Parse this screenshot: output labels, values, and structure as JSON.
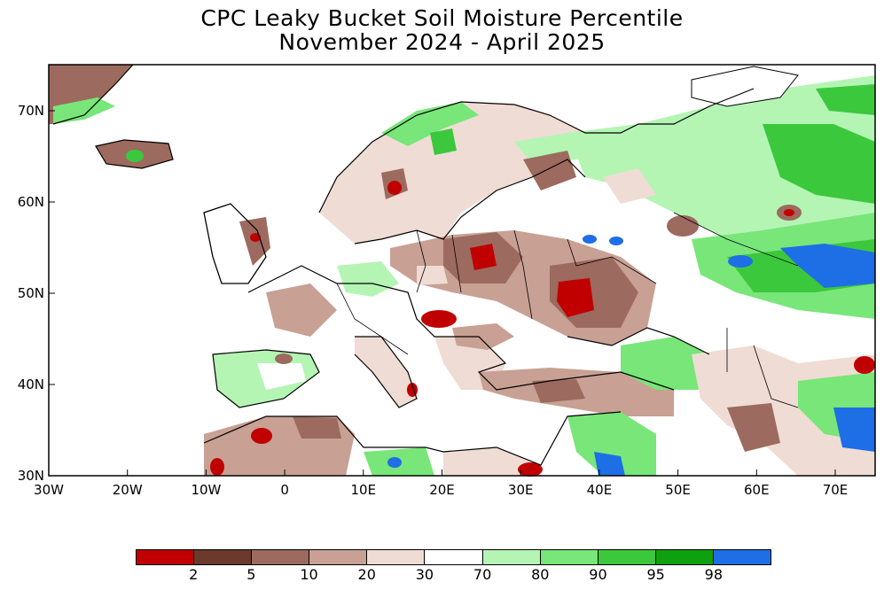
{
  "title_line1": "CPC Leaky Bucket Soil Moisture Percentile",
  "title_line2": "November 2024 - April 2025",
  "lat_ticks": [
    "70N",
    "60N",
    "50N",
    "40N",
    "30N"
  ],
  "lon_ticks": [
    "30W",
    "20W",
    "10W",
    "0",
    "10E",
    "20E",
    "30E",
    "40E",
    "50E",
    "60E",
    "70E"
  ],
  "legend": {
    "colors": [
      "#c00000",
      "#6b3a2c",
      "#9c6a5e",
      "#c8a094",
      "#efdcd4",
      "#ffffff",
      "#b4f5b4",
      "#78e678",
      "#3cc83c",
      "#0fa00f",
      "#1e6ee6"
    ],
    "labels": [
      "2",
      "5",
      "10",
      "20",
      "30",
      "70",
      "80",
      "90",
      "95",
      "98"
    ]
  }
}
